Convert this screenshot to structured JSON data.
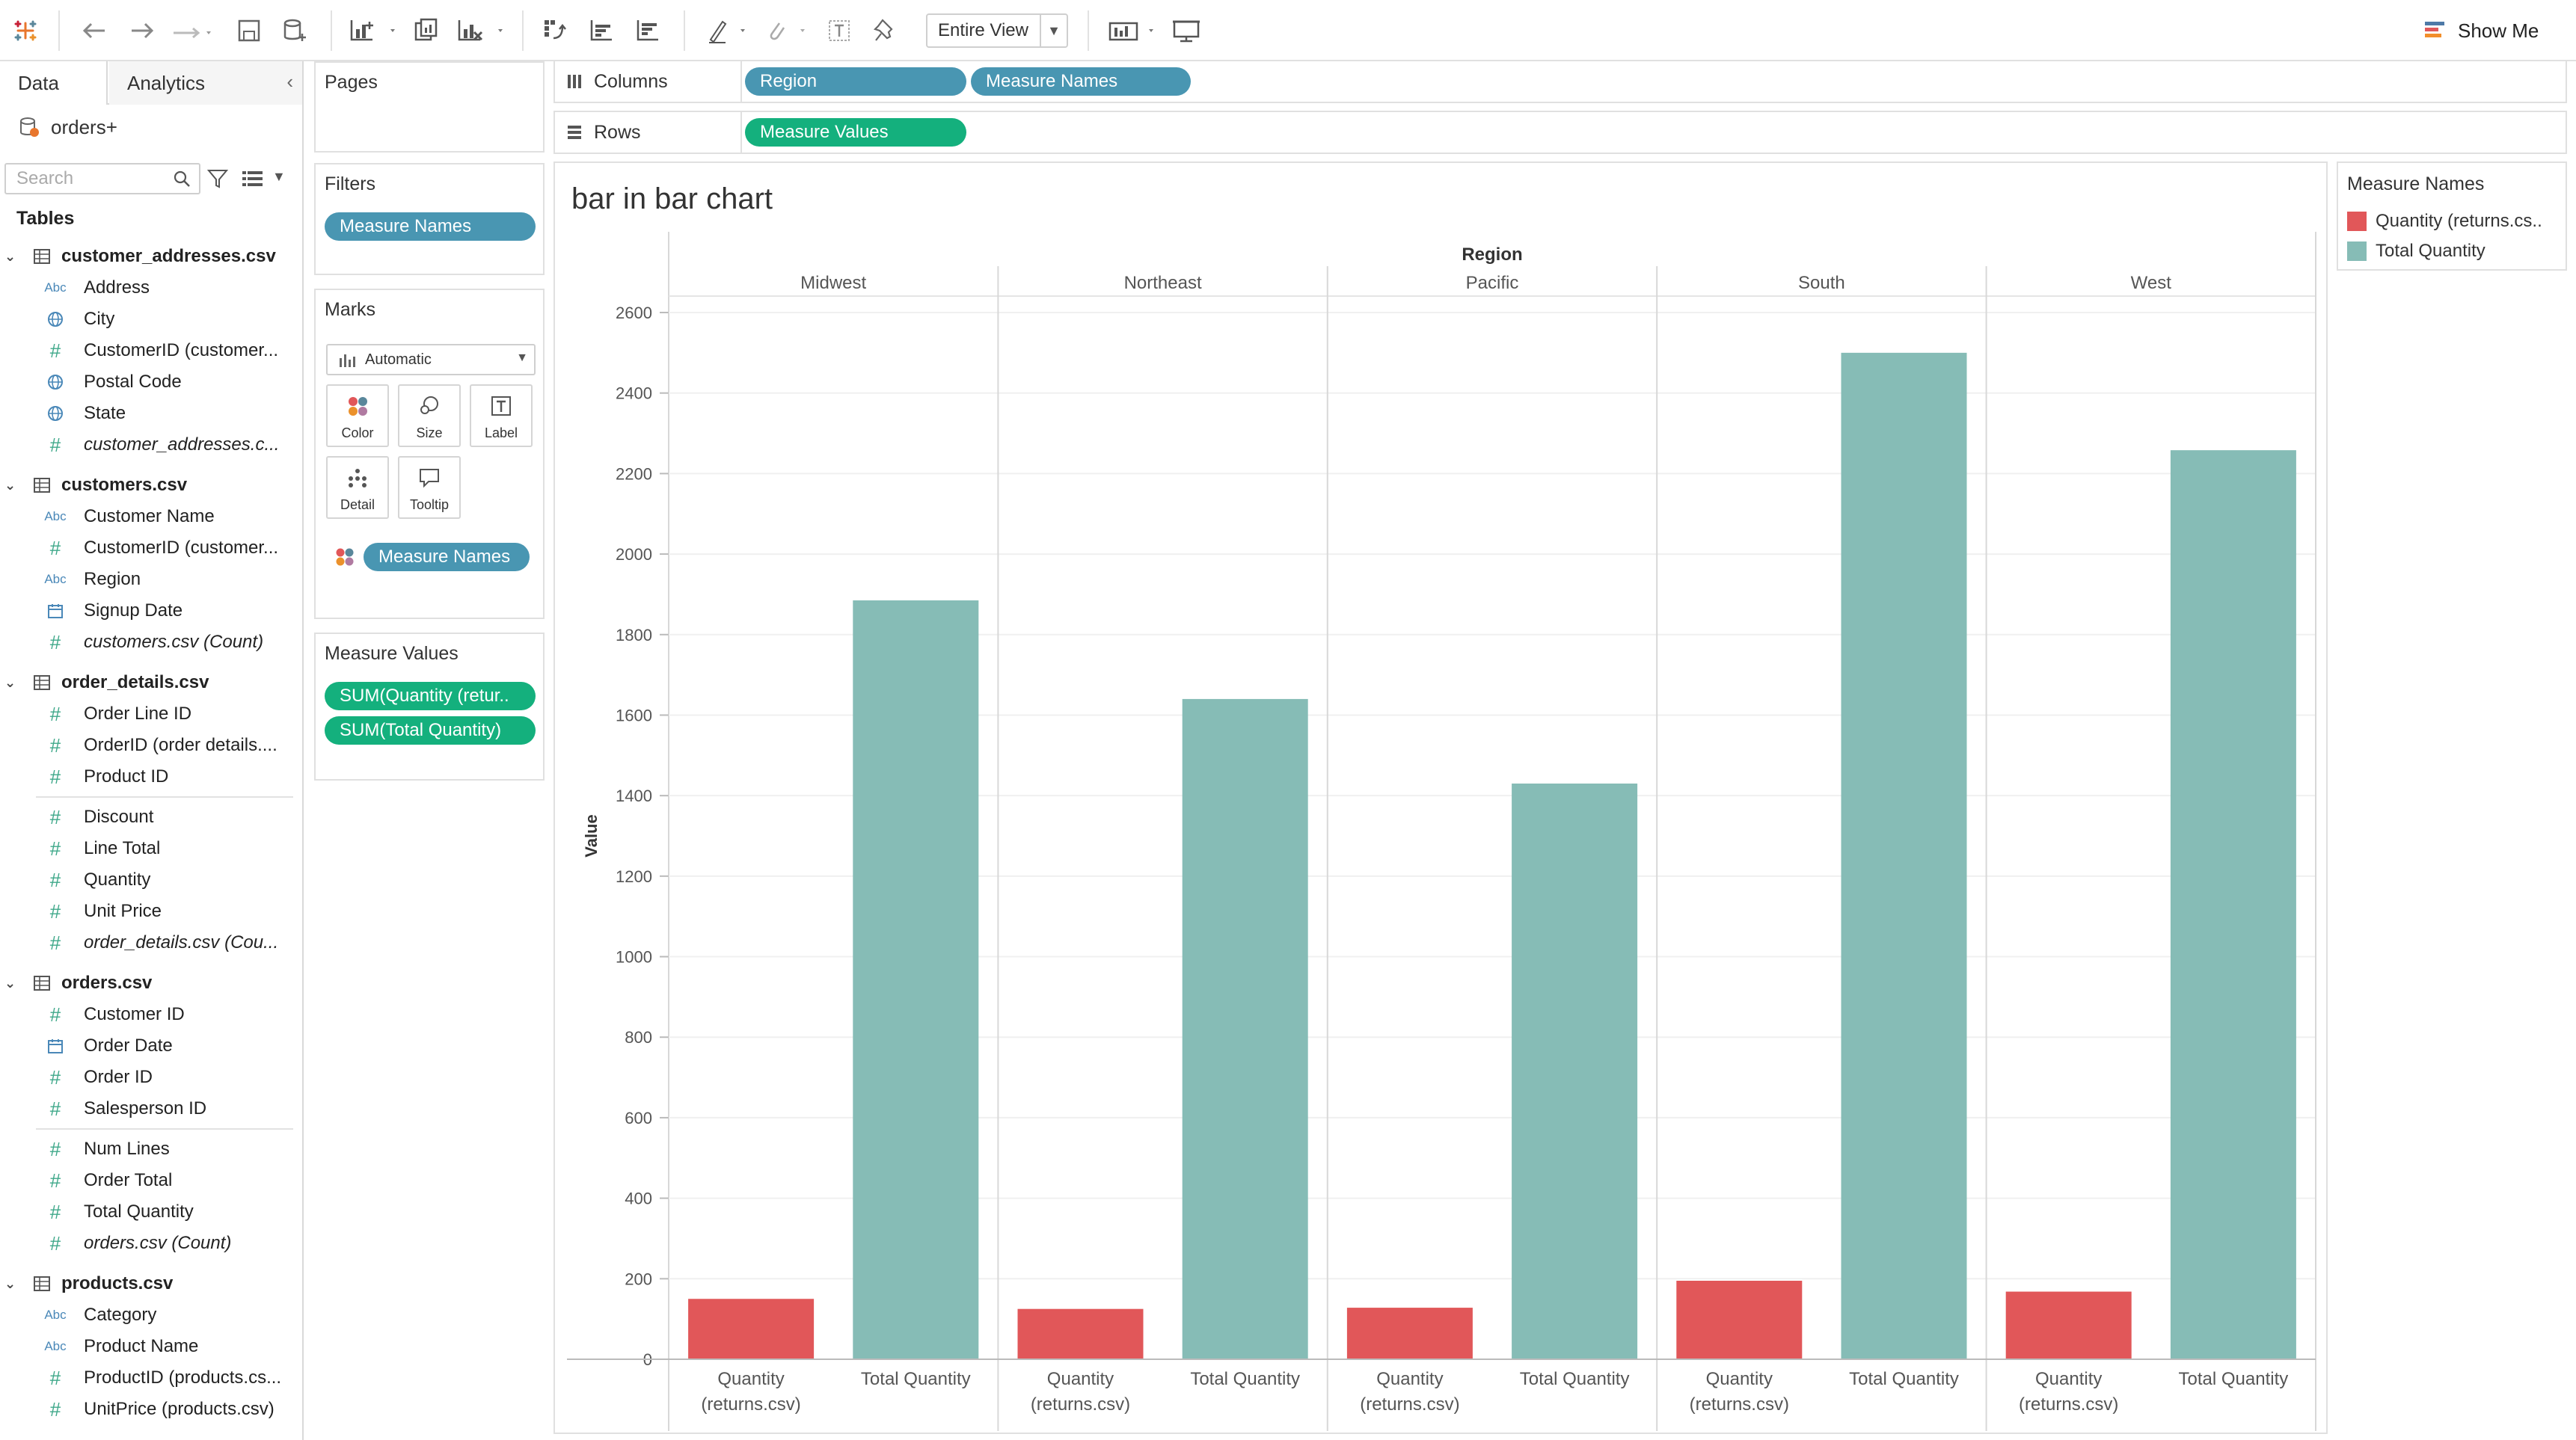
{
  "toolbar": {
    "fit_mode": "Entire View",
    "show_me": "Show Me"
  },
  "data_pane": {
    "tabs": [
      "Data",
      "Analytics"
    ],
    "datasource": "orders+",
    "search_placeholder": "Search",
    "tables_heading": "Tables",
    "tables": [
      {
        "name": "customer_addresses.csv",
        "fields": [
          {
            "name": "Address",
            "icon": "abc"
          },
          {
            "name": "City",
            "icon": "globe"
          },
          {
            "name": "CustomerID (customer...",
            "icon": "hash"
          },
          {
            "name": "Postal Code",
            "icon": "globe"
          },
          {
            "name": "State",
            "icon": "globe"
          },
          {
            "name": "customer_addresses.c...",
            "icon": "hash",
            "italic": true
          }
        ]
      },
      {
        "name": "customers.csv",
        "fields": [
          {
            "name": "Customer Name",
            "icon": "abc"
          },
          {
            "name": "CustomerID (customer...",
            "icon": "hash"
          },
          {
            "name": "Region",
            "icon": "abc"
          },
          {
            "name": "Signup Date",
            "icon": "calendar"
          },
          {
            "name": "customers.csv (Count)",
            "icon": "hash",
            "italic": true
          }
        ]
      },
      {
        "name": "order_details.csv",
        "fields": [
          {
            "name": "Order Line ID",
            "icon": "hash"
          },
          {
            "name": "OrderID (order details....",
            "icon": "hash"
          },
          {
            "name": "Product ID",
            "icon": "hash",
            "line_after": true
          },
          {
            "name": "Discount",
            "icon": "hash"
          },
          {
            "name": "Line Total",
            "icon": "hash"
          },
          {
            "name": "Quantity",
            "icon": "hash"
          },
          {
            "name": "Unit Price",
            "icon": "hash"
          },
          {
            "name": "order_details.csv (Cou...",
            "icon": "hash",
            "italic": true
          }
        ]
      },
      {
        "name": "orders.csv",
        "fields": [
          {
            "name": "Customer ID",
            "icon": "hash"
          },
          {
            "name": "Order Date",
            "icon": "calendar"
          },
          {
            "name": "Order ID",
            "icon": "hash"
          },
          {
            "name": "Salesperson ID",
            "icon": "hash",
            "line_after": true
          },
          {
            "name": "Num Lines",
            "icon": "hash"
          },
          {
            "name": "Order Total",
            "icon": "hash"
          },
          {
            "name": "Total Quantity",
            "icon": "hash"
          },
          {
            "name": "orders.csv (Count)",
            "icon": "hash",
            "italic": true
          }
        ]
      },
      {
        "name": "products.csv",
        "fields": [
          {
            "name": "Category",
            "icon": "abc"
          },
          {
            "name": "Product Name",
            "icon": "abc"
          },
          {
            "name": "ProductID (products.cs...",
            "icon": "hash"
          },
          {
            "name": "UnitPrice (products.csv)",
            "icon": "hash"
          }
        ]
      }
    ]
  },
  "pages": {
    "title": "Pages"
  },
  "filters": {
    "title": "Filters",
    "pills": [
      "Measure Names"
    ]
  },
  "marks": {
    "title": "Marks",
    "type": "Automatic",
    "buttons": [
      "Color",
      "Size",
      "Label",
      "Detail",
      "Tooltip"
    ],
    "color_pill": "Measure Names"
  },
  "measure_values": {
    "title": "Measure Values",
    "pills": [
      "SUM(Quantity (retur..",
      "SUM(Total Quantity)"
    ]
  },
  "columns_shelf": {
    "label": "Columns",
    "pills": [
      "Region",
      "Measure Names"
    ]
  },
  "rows_shelf": {
    "label": "Rows",
    "pills": [
      "Measure Values"
    ]
  },
  "legend": {
    "title": "Measure Names",
    "items": [
      {
        "label": "Quantity (returns.cs..",
        "color": "#e15759"
      },
      {
        "label": "Total Quantity",
        "color": "#86bcb6"
      }
    ]
  },
  "colors": {
    "pill_blue": "#4996b2",
    "pill_green": "#14b07d",
    "quantity_bar": "#e15759",
    "total_bar": "#86bcb6"
  },
  "chart_data": {
    "type": "bar",
    "title": "bar in bar chart",
    "column_header": "Region",
    "ylabel": "Value",
    "ylim": [
      0,
      2600
    ],
    "yticks": [
      0,
      200,
      400,
      600,
      800,
      1000,
      1200,
      1400,
      1600,
      1800,
      2000,
      2200,
      2400,
      2600
    ],
    "categories": [
      "Midwest",
      "Northeast",
      "Pacific",
      "South",
      "West"
    ],
    "sub_categories": [
      [
        "Quantity",
        "(returns.csv)"
      ],
      [
        "Total Quantity"
      ]
    ],
    "series": [
      {
        "name": "Quantity (returns.csv)",
        "values": [
          150,
          125,
          128,
          195,
          168
        ]
      },
      {
        "name": "Total Quantity",
        "values": [
          1885,
          1640,
          1430,
          2500,
          2258
        ]
      }
    ],
    "grid": true
  }
}
